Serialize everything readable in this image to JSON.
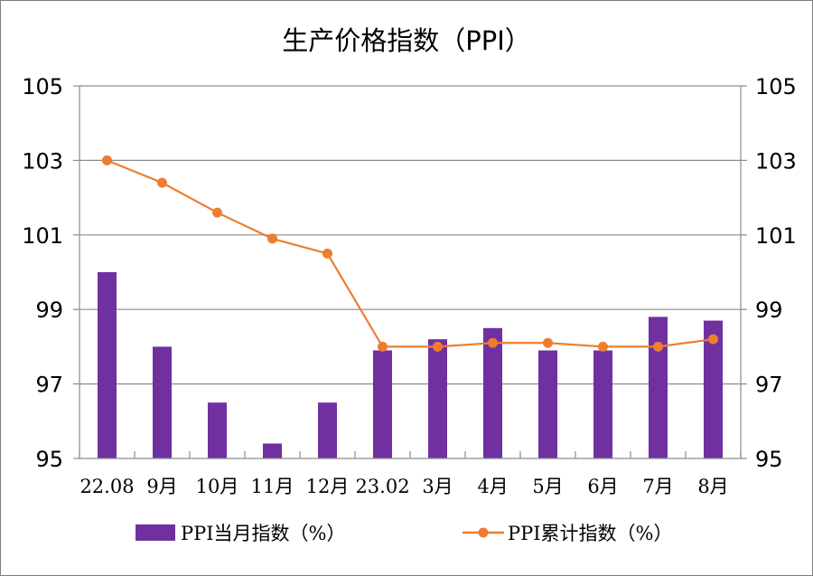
{
  "chart_data": {
    "type": "bar+line",
    "title": "生产价格指数（PPI）",
    "categories": [
      "22.08",
      "9月",
      "10月",
      "11月",
      "12月",
      "23.02",
      "3月",
      "4月",
      "5月",
      "6月",
      "7月",
      "8月"
    ],
    "series": [
      {
        "name": "PPI当月指数（%）",
        "type": "bar",
        "color": "#7030a0",
        "values": [
          100.0,
          98.0,
          96.5,
          95.4,
          96.5,
          97.9,
          98.2,
          98.5,
          97.9,
          97.9,
          98.8,
          98.7
        ]
      },
      {
        "name": "PPI累计指数（%）",
        "type": "line",
        "color": "#ed7d31",
        "values": [
          103.0,
          102.4,
          101.6,
          100.9,
          100.5,
          98.0,
          98.0,
          98.1,
          98.1,
          98.0,
          98.0,
          98.2
        ]
      }
    ],
    "ylim": [
      95,
      105
    ],
    "yticks": [
      "95",
      "97",
      "99",
      "101",
      "103",
      "105"
    ],
    "y2ticks": [
      "95",
      "97",
      "99",
      "101",
      "103",
      "105"
    ],
    "grid": true,
    "legend_position": "bottom"
  }
}
